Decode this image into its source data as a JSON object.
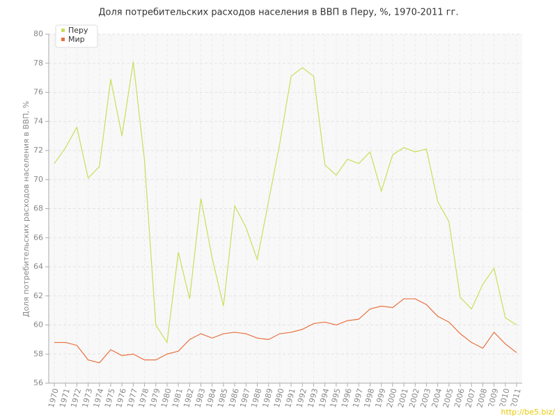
{
  "chart_data": {
    "type": "line",
    "title": "Доля потребительских расходов населения в ВВП в Перу, %, 1970-2011 гг.",
    "y_label": "Доля потребительских расходов населения в ВВП, %",
    "watermark": "http://be5.biz/",
    "categories": [
      "1970",
      "1971",
      "1972",
      "1973",
      "1974",
      "1975",
      "1976",
      "1977",
      "1978",
      "1979",
      "1980",
      "1981",
      "1982",
      "1983",
      "1984",
      "1985",
      "1986",
      "1987",
      "1988",
      "1989",
      "1990",
      "1991",
      "1992",
      "1993",
      "1994",
      "1995",
      "1996",
      "1997",
      "1998",
      "1999",
      "2000",
      "2001",
      "2002",
      "2003",
      "2004",
      "2005",
      "2006",
      "2007",
      "2008",
      "2009",
      "2010",
      "2011"
    ],
    "series": [
      {
        "name": "Перу",
        "color": "#c5e05a",
        "values": [
          71.1,
          72.2,
          73.6,
          70.1,
          70.9,
          76.9,
          73.0,
          78.1,
          71.3,
          60.0,
          58.8,
          65.0,
          61.8,
          68.7,
          64.6,
          61.3,
          68.2,
          66.7,
          64.5,
          68.5,
          72.5,
          77.1,
          77.7,
          77.1,
          71.0,
          70.3,
          71.4,
          71.1,
          71.9,
          69.2,
          71.7,
          72.2,
          71.9,
          72.1,
          68.5,
          67.1,
          61.9,
          61.1,
          62.8,
          63.9,
          60.5,
          60.0
        ]
      },
      {
        "name": "Мир",
        "color": "#e8703e",
        "values": [
          58.8,
          58.8,
          58.6,
          57.6,
          57.4,
          58.3,
          57.9,
          58.0,
          57.6,
          57.6,
          58.0,
          58.2,
          59.0,
          59.4,
          59.1,
          59.4,
          59.5,
          59.4,
          59.1,
          59.0,
          59.4,
          59.5,
          59.7,
          60.1,
          60.2,
          60.0,
          60.3,
          60.4,
          61.1,
          61.3,
          61.2,
          61.8,
          61.8,
          61.4,
          60.6,
          60.2,
          59.4,
          58.8,
          58.4,
          59.5,
          58.7,
          58.1
        ]
      }
    ],
    "ylim": [
      56,
      80
    ],
    "yticks": [
      56,
      58,
      60,
      62,
      64,
      66,
      68,
      70,
      72,
      74,
      76,
      78,
      80
    ],
    "grid": true,
    "legend": "top-left"
  }
}
